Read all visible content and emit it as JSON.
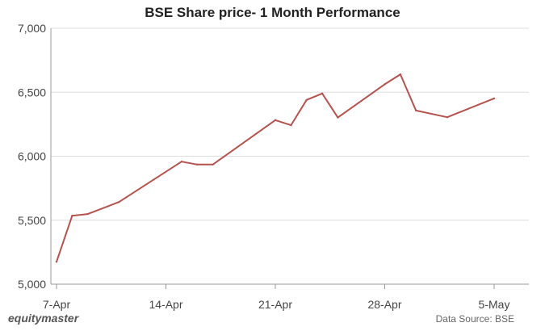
{
  "chart_data": {
    "type": "line",
    "title": "BSE Share price- 1 Month Performance",
    "xlabel": "",
    "ylabel": "",
    "x_start": "2025-04-07",
    "x_end": "2025-05-05",
    "xticks": [
      "7-Apr",
      "14-Apr",
      "21-Apr",
      "28-Apr",
      "5-May"
    ],
    "yticks": [
      "5,000",
      "5,500",
      "6,000",
      "6,500",
      "7,000"
    ],
    "ylim": [
      5000,
      7000
    ],
    "grid": true,
    "line_color": "#b5524d",
    "series": [
      {
        "x": [
          "2025-04-07",
          "2025-04-08",
          "2025-04-09",
          "2025-04-11",
          "2025-04-15",
          "2025-04-16",
          "2025-04-17",
          "2025-04-21",
          "2025-04-22",
          "2025-04-23",
          "2025-04-24",
          "2025-04-25",
          "2025-04-28",
          "2025-04-29",
          "2025-04-30",
          "2025-05-02",
          "2025-05-05"
        ],
        "values": [
          5175,
          5535,
          5548,
          5642,
          5958,
          5935,
          5935,
          6282,
          6242,
          6440,
          6490,
          6302,
          6562,
          6640,
          6357,
          6305,
          6452
        ]
      }
    ]
  },
  "footer": {
    "brand": "equitymaster",
    "source": "Data Source: BSE"
  }
}
